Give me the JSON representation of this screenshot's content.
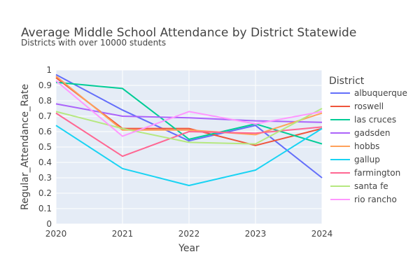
{
  "chart_data": {
    "type": "line",
    "title": "Average Middle School Attendance by District Statewide",
    "subtitle": "Districts with over 10000 students",
    "xlabel": "Year",
    "ylabel": "Regular_Attendance_Rate",
    "x": [
      2020,
      2021,
      2022,
      2023,
      2024
    ],
    "xlim": [
      2020,
      2024
    ],
    "ylim": [
      0,
      1
    ],
    "yticks": [
      "0",
      "0.1",
      "0.2",
      "0.3",
      "0.4",
      "0.5",
      "0.6",
      "0.7",
      "0.8",
      "0.9",
      "1"
    ],
    "xticks": [
      "2020",
      "2021",
      "2022",
      "2023",
      "2024"
    ],
    "grid": true,
    "legend_title": "District",
    "legend_position": "right",
    "series": [
      {
        "name": "albuquerque",
        "color": "#636efa",
        "values": [
          0.97,
          0.74,
          0.54,
          0.64,
          0.3
        ]
      },
      {
        "name": "roswell",
        "color": "#ef553b",
        "values": [
          0.95,
          0.62,
          0.62,
          0.51,
          0.62
        ]
      },
      {
        "name": "las cruces",
        "color": "#00cc96",
        "values": [
          0.92,
          0.88,
          0.55,
          0.65,
          0.52
        ]
      },
      {
        "name": "gadsden",
        "color": "#ab63fa",
        "values": [
          0.78,
          0.7,
          0.69,
          0.67,
          0.66
        ]
      },
      {
        "name": "hobbs",
        "color": "#ffa15a",
        "values": [
          0.96,
          0.61,
          0.61,
          0.58,
          0.72
        ]
      },
      {
        "name": "gallup",
        "color": "#19d3f3",
        "values": [
          0.64,
          0.36,
          0.25,
          0.35,
          0.62
        ]
      },
      {
        "name": "farmington",
        "color": "#ff6692",
        "values": [
          0.72,
          0.44,
          0.6,
          0.59,
          0.63
        ]
      },
      {
        "name": "santa fe",
        "color": "#b6e880",
        "values": [
          0.73,
          0.62,
          0.53,
          0.52,
          0.75
        ]
      },
      {
        "name": "rio rancho",
        "color": "#ff97ff",
        "values": [
          0.93,
          0.57,
          0.73,
          0.65,
          0.73
        ]
      }
    ]
  }
}
